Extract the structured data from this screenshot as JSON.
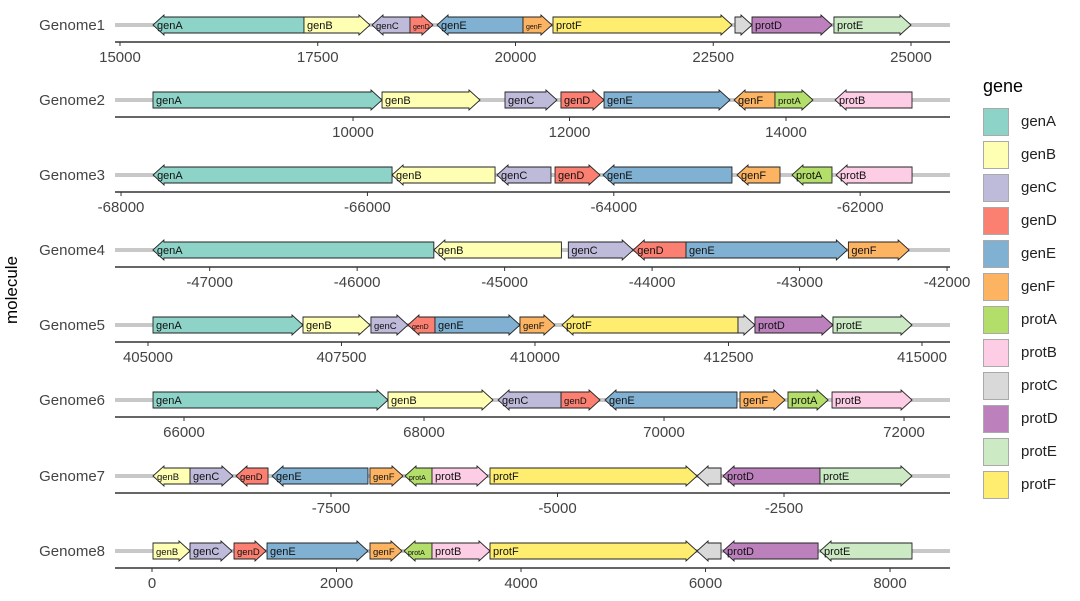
{
  "chart_data": {
    "type": "gene-arrow",
    "ylabel": "molecule",
    "legend": {
      "title": "gene",
      "placement": "right"
    },
    "colors": {
      "genA": "#8DD3C7",
      "genB": "#FFFFB3",
      "genC": "#BEBADA",
      "genD": "#FB8072",
      "genE": "#80B1D3",
      "genF": "#FDB462",
      "protA": "#B3DE69",
      "protB": "#FCCDE5",
      "protC": "#D9D9D9",
      "protD": "#BC80BD",
      "protE": "#CCEBC5",
      "protF": "#FFED6F"
    },
    "legend_entries": [
      "genA",
      "genB",
      "genC",
      "genD",
      "genE",
      "genF",
      "protA",
      "protB",
      "protC",
      "protD",
      "protE",
      "protF"
    ],
    "molecules": [
      {
        "name": "Genome1",
        "xlim": [
          14937,
          25493
        ],
        "ticks": [
          15000,
          17500,
          20000,
          22500,
          25000
        ],
        "genes": [
          {
            "gene": "genA",
            "start": 15417,
            "end": 17326,
            "strand": "reverse"
          },
          {
            "gene": "genB",
            "start": 17326,
            "end": 18160,
            "strand": "forward"
          },
          {
            "gene": "genC",
            "start": 18186,
            "end": 18666,
            "strand": "reverse"
          },
          {
            "gene": "genD",
            "start": 18666,
            "end": 18957,
            "strand": "forward"
          },
          {
            "gene": "genE",
            "start": 19008,
            "end": 20095,
            "strand": "reverse"
          },
          {
            "gene": "genF",
            "start": 20095,
            "end": 20461,
            "strand": "forward"
          },
          {
            "gene": "protF",
            "start": 20474,
            "end": 22737,
            "strand": "forward"
          },
          {
            "gene": "protC",
            "start": 22775,
            "end": 22990,
            "strand": "forward"
          },
          {
            "gene": "protD",
            "start": 22990,
            "end": 24001,
            "strand": "forward"
          },
          {
            "gene": "protE",
            "start": 24026,
            "end": 25000,
            "strand": "forward"
          }
        ]
      },
      {
        "name": "Genome2",
        "xlim": [
          7801,
          15515
        ],
        "ticks": [
          10000,
          12000,
          14000
        ],
        "genes": [
          {
            "gene": "genA",
            "start": 8152,
            "end": 10268,
            "strand": "forward"
          },
          {
            "gene": "genB",
            "start": 10268,
            "end": 11173,
            "strand": "forward"
          },
          {
            "gene": "genC",
            "start": 11404,
            "end": 11884,
            "strand": "forward"
          },
          {
            "gene": "genD",
            "start": 11921,
            "end": 12319,
            "strand": "forward"
          },
          {
            "gene": "genE",
            "start": 12319,
            "end": 13483,
            "strand": "forward"
          },
          {
            "gene": "genF",
            "start": 13520,
            "end": 13898,
            "strand": "reverse"
          },
          {
            "gene": "protA",
            "start": 13898,
            "end": 14249,
            "strand": "forward"
          },
          {
            "gene": "protB",
            "start": 14453,
            "end": 15164,
            "strand": "reverse"
          }
        ]
      },
      {
        "name": "Genome3",
        "xlim": [
          -68049,
          -61271
        ],
        "ticks": [
          -68000,
          -66000,
          -64000,
          -62000
        ],
        "genes": [
          {
            "gene": "genA",
            "start": -67740,
            "end": -65800,
            "strand": "reverse"
          },
          {
            "gene": "genB",
            "start": -65800,
            "end": -64964,
            "strand": "reverse"
          },
          {
            "gene": "genC",
            "start": -64948,
            "end": -64510,
            "strand": "reverse"
          },
          {
            "gene": "genD",
            "start": -64477,
            "end": -64112,
            "strand": "forward"
          },
          {
            "gene": "genE",
            "start": -64088,
            "end": -63041,
            "strand": "reverse"
          },
          {
            "gene": "genF",
            "start": -63000,
            "end": -62651,
            "strand": "reverse"
          },
          {
            "gene": "protA",
            "start": -62554,
            "end": -62229,
            "strand": "reverse"
          },
          {
            "gene": "protB",
            "start": -62196,
            "end": -61579,
            "strand": "reverse"
          }
        ]
      },
      {
        "name": "Genome4",
        "xlim": [
          -47642,
          -41980
        ],
        "ticks": [
          -47000,
          -46000,
          -45000,
          -44000,
          -43000,
          -42000
        ],
        "genes": [
          {
            "gene": "genA",
            "start": -47385,
            "end": -45480,
            "strand": "reverse"
          },
          {
            "gene": "genB",
            "start": -45480,
            "end": -44615,
            "strand": "reverse"
          },
          {
            "gene": "genC",
            "start": -44568,
            "end": -44128,
            "strand": "forward"
          },
          {
            "gene": "genD",
            "start": -44128,
            "end": -43770,
            "strand": "reverse"
          },
          {
            "gene": "genE",
            "start": -43770,
            "end": -42676,
            "strand": "forward"
          },
          {
            "gene": "genF",
            "start": -42669,
            "end": -42257,
            "strand": "forward"
          }
        ]
      },
      {
        "name": "Genome5",
        "xlim": [
          404574,
          415362
        ],
        "ticks": [
          405000,
          407500,
          410000,
          412500,
          415000
        ],
        "genes": [
          {
            "gene": "genA",
            "start": 405065,
            "end": 407003,
            "strand": "forward"
          },
          {
            "gene": "genB",
            "start": 407003,
            "end": 407868,
            "strand": "forward"
          },
          {
            "gene": "genC",
            "start": 407881,
            "end": 408359,
            "strand": "forward"
          },
          {
            "gene": "genD",
            "start": 408359,
            "end": 408708,
            "strand": "reverse"
          },
          {
            "gene": "genE",
            "start": 408708,
            "end": 409806,
            "strand": "forward"
          },
          {
            "gene": "genF",
            "start": 409806,
            "end": 410258,
            "strand": "forward"
          },
          {
            "gene": "protF",
            "start": 410349,
            "end": 412623,
            "strand": "reverse"
          },
          {
            "gene": "protC",
            "start": 412623,
            "end": 412842,
            "strand": "forward"
          },
          {
            "gene": "protD",
            "start": 412842,
            "end": 413850,
            "strand": "forward"
          },
          {
            "gene": "protE",
            "start": 413850,
            "end": 414871,
            "strand": "forward"
          }
        ]
      },
      {
        "name": "Genome6",
        "xlim": [
          65425,
          72383
        ],
        "ticks": [
          66000,
          68000,
          70000,
          72000
        ],
        "genes": [
          {
            "gene": "genA",
            "start": 65742,
            "end": 67700,
            "strand": "forward"
          },
          {
            "gene": "genB",
            "start": 67700,
            "end": 68575,
            "strand": "forward"
          },
          {
            "gene": "genC",
            "start": 68617,
            "end": 69142,
            "strand": "reverse"
          },
          {
            "gene": "genD",
            "start": 69142,
            "end": 69467,
            "strand": "forward"
          },
          {
            "gene": "genE",
            "start": 69508,
            "end": 70608,
            "strand": "reverse"
          },
          {
            "gene": "genF",
            "start": 70633,
            "end": 71008,
            "strand": "forward"
          },
          {
            "gene": "protA",
            "start": 71033,
            "end": 71367,
            "strand": "forward"
          },
          {
            "gene": "protB",
            "start": 71400,
            "end": 72067,
            "strand": "forward"
          }
        ]
      },
      {
        "name": "Genome7",
        "xlim": [
          -9884,
          -668
        ],
        "ticks": [
          -7500,
          -5000,
          -2500
        ],
        "genes": [
          {
            "gene": "genB",
            "start": -9465,
            "end": -9056,
            "strand": "reverse"
          },
          {
            "gene": "genC",
            "start": -9056,
            "end": -8582,
            "strand": "forward"
          },
          {
            "gene": "genD",
            "start": -8549,
            "end": -8195,
            "strand": "reverse"
          },
          {
            "gene": "genE",
            "start": -8151,
            "end": -7092,
            "strand": "reverse"
          },
          {
            "gene": "genF",
            "start": -7070,
            "end": -6705,
            "strand": "forward"
          },
          {
            "gene": "protA",
            "start": -6683,
            "end": -6385,
            "strand": "reverse"
          },
          {
            "gene": "protB",
            "start": -6385,
            "end": -5767,
            "strand": "forward"
          },
          {
            "gene": "protF",
            "start": -5745,
            "end": -3460,
            "strand": "forward"
          },
          {
            "gene": "protC",
            "start": -3460,
            "end": -3195,
            "strand": "reverse"
          },
          {
            "gene": "protD",
            "start": -3173,
            "end": -2103,
            "strand": "reverse"
          },
          {
            "gene": "protE",
            "start": -2103,
            "end": -1088,
            "strand": "forward"
          }
        ]
      },
      {
        "name": "Genome8",
        "xlim": [
          -401,
          8650
        ],
        "ticks": [
          0,
          2000,
          4000,
          6000,
          8000
        ],
        "genes": [
          {
            "gene": "genB",
            "start": 11,
            "end": 412,
            "strand": "forward"
          },
          {
            "gene": "genC",
            "start": 412,
            "end": 867,
            "strand": "forward"
          },
          {
            "gene": "genD",
            "start": 889,
            "end": 1236,
            "strand": "forward"
          },
          {
            "gene": "genE",
            "start": 1247,
            "end": 2341,
            "strand": "forward"
          },
          {
            "gene": "genF",
            "start": 2363,
            "end": 2710,
            "strand": "forward"
          },
          {
            "gene": "protA",
            "start": 2732,
            "end": 3035,
            "strand": "reverse"
          },
          {
            "gene": "protB",
            "start": 3035,
            "end": 3664,
            "strand": "forward"
          },
          {
            "gene": "protF",
            "start": 3664,
            "end": 5908,
            "strand": "forward"
          },
          {
            "gene": "protC",
            "start": 5908,
            "end": 6168,
            "strand": "reverse"
          },
          {
            "gene": "protD",
            "start": 6190,
            "end": 7220,
            "strand": "reverse"
          },
          {
            "gene": "protE",
            "start": 7241,
            "end": 8238,
            "strand": "reverse"
          }
        ]
      }
    ]
  }
}
